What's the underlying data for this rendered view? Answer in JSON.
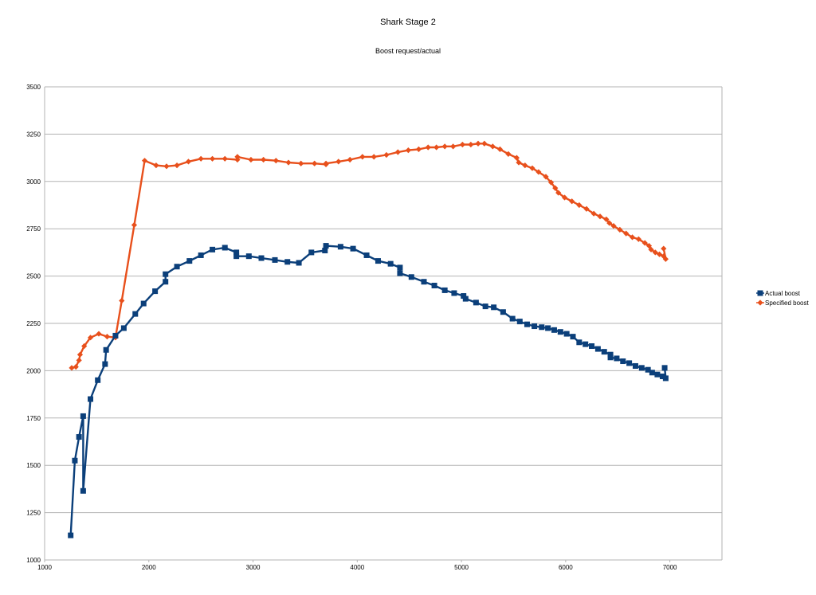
{
  "chart_data": {
    "type": "line",
    "title": "Shark Stage 2",
    "subtitle": "Boost request/actual",
    "xlabel": "",
    "ylabel": "",
    "xlim": [
      1000,
      7500
    ],
    "ylim": [
      1000,
      3500
    ],
    "x_ticks": [
      1000,
      2000,
      3000,
      4000,
      5000,
      6000,
      7000
    ],
    "y_ticks": [
      1000,
      1250,
      1500,
      1750,
      2000,
      2250,
      2500,
      2750,
      3000,
      3250,
      3500
    ],
    "grid": "horizontal",
    "legend_position": "right",
    "series": [
      {
        "name": "Actual boost",
        "color": "#0b3f7a",
        "marker": "square",
        "points": [
          [
            1250,
            1130
          ],
          [
            1290,
            1525
          ],
          [
            1330,
            1650
          ],
          [
            1370,
            1760
          ],
          [
            1370,
            1365
          ],
          [
            1440,
            1850
          ],
          [
            1510,
            1950
          ],
          [
            1580,
            2035
          ],
          [
            1590,
            2110
          ],
          [
            1680,
            2185
          ],
          [
            1760,
            2225
          ],
          [
            1870,
            2300
          ],
          [
            1950,
            2355
          ],
          [
            2060,
            2420
          ],
          [
            2160,
            2470
          ],
          [
            2160,
            2510
          ],
          [
            2270,
            2550
          ],
          [
            2390,
            2580
          ],
          [
            2500,
            2610
          ],
          [
            2610,
            2640
          ],
          [
            2730,
            2650
          ],
          [
            2840,
            2625
          ],
          [
            2840,
            2605
          ],
          [
            2960,
            2605
          ],
          [
            3080,
            2595
          ],
          [
            3210,
            2585
          ],
          [
            3330,
            2575
          ],
          [
            3440,
            2570
          ],
          [
            3560,
            2625
          ],
          [
            3690,
            2635
          ],
          [
            3700,
            2660
          ],
          [
            3840,
            2655
          ],
          [
            3960,
            2645
          ],
          [
            4090,
            2610
          ],
          [
            4200,
            2580
          ],
          [
            4320,
            2565
          ],
          [
            4410,
            2545
          ],
          [
            4410,
            2515
          ],
          [
            4520,
            2495
          ],
          [
            4640,
            2470
          ],
          [
            4740,
            2450
          ],
          [
            4840,
            2425
          ],
          [
            4930,
            2410
          ],
          [
            5020,
            2395
          ],
          [
            5040,
            2380
          ],
          [
            5140,
            2360
          ],
          [
            5230,
            2340
          ],
          [
            5310,
            2335
          ],
          [
            5400,
            2310
          ],
          [
            5490,
            2275
          ],
          [
            5560,
            2260
          ],
          [
            5630,
            2245
          ],
          [
            5700,
            2235
          ],
          [
            5770,
            2230
          ],
          [
            5830,
            2225
          ],
          [
            5890,
            2215
          ],
          [
            5950,
            2205
          ],
          [
            6010,
            2195
          ],
          [
            6070,
            2180
          ],
          [
            6130,
            2150
          ],
          [
            6190,
            2140
          ],
          [
            6250,
            2130
          ],
          [
            6310,
            2115
          ],
          [
            6370,
            2100
          ],
          [
            6430,
            2085
          ],
          [
            6430,
            2070
          ],
          [
            6490,
            2065
          ],
          [
            6550,
            2050
          ],
          [
            6610,
            2040
          ],
          [
            6670,
            2025
          ],
          [
            6730,
            2015
          ],
          [
            6790,
            2005
          ],
          [
            6830,
            1990
          ],
          [
            6880,
            1980
          ],
          [
            6930,
            1970
          ],
          [
            6960,
            1960
          ],
          [
            6950,
            2015
          ]
        ]
      },
      {
        "name": "Specified boost",
        "color": "#e8501c",
        "marker": "diamond",
        "points": [
          [
            1260,
            2015
          ],
          [
            1300,
            2020
          ],
          [
            1330,
            2055
          ],
          [
            1340,
            2085
          ],
          [
            1380,
            2130
          ],
          [
            1440,
            2175
          ],
          [
            1520,
            2195
          ],
          [
            1600,
            2180
          ],
          [
            1680,
            2175
          ],
          [
            1740,
            2370
          ],
          [
            1860,
            2770
          ],
          [
            1960,
            3110
          ],
          [
            2070,
            3085
          ],
          [
            2170,
            3080
          ],
          [
            2270,
            3085
          ],
          [
            2380,
            3105
          ],
          [
            2500,
            3120
          ],
          [
            2610,
            3120
          ],
          [
            2730,
            3120
          ],
          [
            2850,
            3115
          ],
          [
            2850,
            3130
          ],
          [
            2980,
            3115
          ],
          [
            3100,
            3115
          ],
          [
            3220,
            3110
          ],
          [
            3340,
            3100
          ],
          [
            3460,
            3095
          ],
          [
            3590,
            3095
          ],
          [
            3700,
            3090
          ],
          [
            3700,
            3095
          ],
          [
            3820,
            3105
          ],
          [
            3930,
            3115
          ],
          [
            4050,
            3130
          ],
          [
            4160,
            3130
          ],
          [
            4280,
            3140
          ],
          [
            4390,
            3155
          ],
          [
            4490,
            3165
          ],
          [
            4590,
            3170
          ],
          [
            4680,
            3180
          ],
          [
            4760,
            3180
          ],
          [
            4840,
            3185
          ],
          [
            4920,
            3185
          ],
          [
            5010,
            3195
          ],
          [
            5090,
            3195
          ],
          [
            5160,
            3200
          ],
          [
            5220,
            3200
          ],
          [
            5300,
            3185
          ],
          [
            5370,
            3170
          ],
          [
            5450,
            3145
          ],
          [
            5530,
            3125
          ],
          [
            5550,
            3100
          ],
          [
            5610,
            3085
          ],
          [
            5680,
            3070
          ],
          [
            5740,
            3050
          ],
          [
            5810,
            3025
          ],
          [
            5860,
            2995
          ],
          [
            5900,
            2965
          ],
          [
            5930,
            2940
          ],
          [
            5990,
            2915
          ],
          [
            6060,
            2895
          ],
          [
            6130,
            2875
          ],
          [
            6200,
            2855
          ],
          [
            6270,
            2830
          ],
          [
            6330,
            2815
          ],
          [
            6390,
            2800
          ],
          [
            6420,
            2780
          ],
          [
            6460,
            2765
          ],
          [
            6520,
            2745
          ],
          [
            6580,
            2725
          ],
          [
            6640,
            2705
          ],
          [
            6700,
            2695
          ],
          [
            6760,
            2675
          ],
          [
            6800,
            2660
          ],
          [
            6820,
            2640
          ],
          [
            6860,
            2625
          ],
          [
            6900,
            2615
          ],
          [
            6940,
            2605
          ],
          [
            6960,
            2590
          ],
          [
            6940,
            2645
          ]
        ]
      }
    ]
  }
}
